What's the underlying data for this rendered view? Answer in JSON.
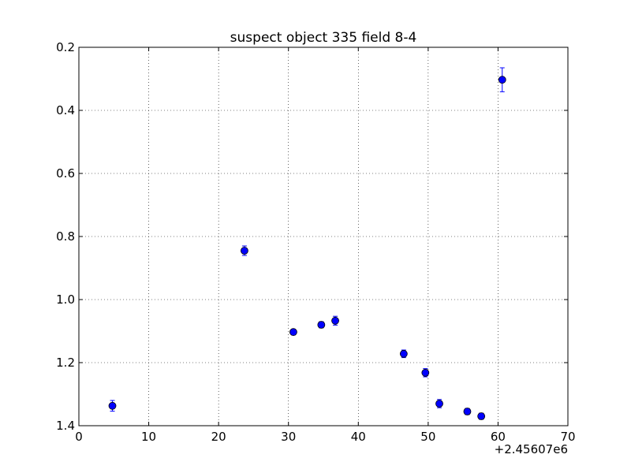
{
  "chart_data": {
    "type": "scatter",
    "title": "suspect object 335 field 8-4",
    "xlabel": "",
    "ylabel": "",
    "xlim": [
      0,
      70
    ],
    "ylim": [
      1.4,
      0.2
    ],
    "y_inverted": true,
    "x_offset_label": "+2.45607e6",
    "xticks": [
      0,
      10,
      20,
      30,
      40,
      50,
      60,
      70
    ],
    "xtick_labels": [
      "0",
      "10",
      "20",
      "30",
      "40",
      "50",
      "60",
      "70"
    ],
    "yticks": [
      0.2,
      0.4,
      0.6,
      0.8,
      1.0,
      1.2,
      1.4
    ],
    "ytick_labels": [
      "0.2",
      "0.4",
      "0.6",
      "0.8",
      "1.0",
      "1.2",
      "1.4"
    ],
    "grid": true,
    "marker_color": "#0000ff",
    "points": [
      {
        "x": 4.8,
        "y": 1.337,
        "err": 0.017
      },
      {
        "x": 23.7,
        "y": 0.845,
        "err": 0.015
      },
      {
        "x": 30.7,
        "y": 1.103,
        "err": 0.009
      },
      {
        "x": 34.7,
        "y": 1.08,
        "err": 0.01
      },
      {
        "x": 36.7,
        "y": 1.067,
        "err": 0.014
      },
      {
        "x": 46.5,
        "y": 1.172,
        "err": 0.012
      },
      {
        "x": 49.6,
        "y": 1.232,
        "err": 0.013
      },
      {
        "x": 51.6,
        "y": 1.33,
        "err": 0.013
      },
      {
        "x": 55.6,
        "y": 1.355,
        "err": 0.01
      },
      {
        "x": 57.6,
        "y": 1.37,
        "err": 0.01
      },
      {
        "x": 60.6,
        "y": 0.303,
        "err": 0.038
      }
    ]
  }
}
